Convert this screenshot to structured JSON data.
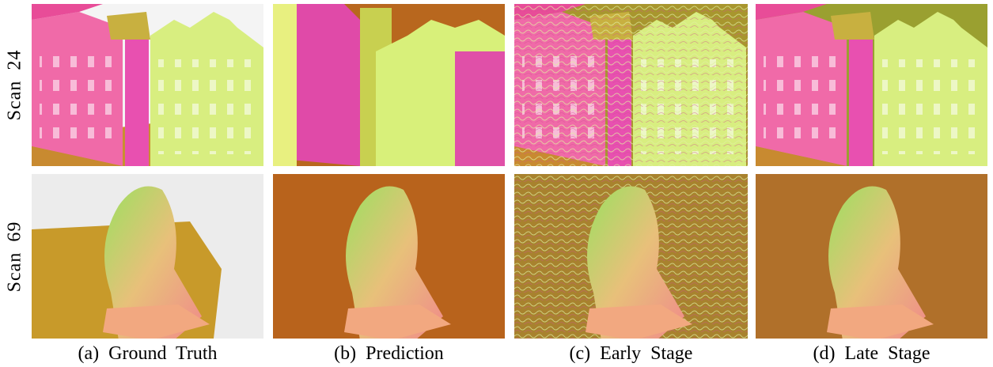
{
  "row_labels": [
    "Scan 24",
    "Scan 69"
  ],
  "column_captions": [
    "(a) Ground Truth",
    "(b) Prediction",
    "(c) Early Stage",
    "(d) Late Stage"
  ]
}
